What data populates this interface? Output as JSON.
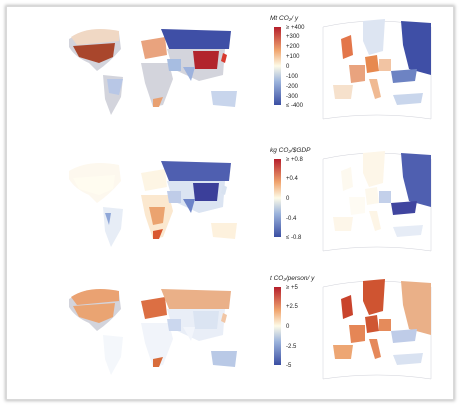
{
  "panels": [
    {
      "legend_title": "Mt CO₂/ y",
      "ticks": [
        "≥ +400",
        "+300",
        "+200",
        "+100",
        "0",
        "-100",
        "-200",
        "-300",
        "≤ -400"
      ],
      "colors": {
        "land": "#d3d4dc",
        "usa": "#a9462c",
        "china": "#b2242d",
        "russia": "#3f4fa6",
        "japan": "#d83a2e",
        "india": "#9db2dd",
        "brazil": "#b8c7e6",
        "europe": "#e9a37e",
        "canada": "#f0d8c4",
        "australia": "#c8d5ec",
        "southafrica": "#e8a071",
        "mideast": "#a7bde1",
        "ukraine": "#6d83c3"
      }
    },
    {
      "legend_title": "kg CO₂/$GDP",
      "ticks": [
        "≥ +0.8",
        "+0.4",
        "0",
        "-0.4",
        "≤ -0.8"
      ],
      "colors": {
        "land": "#d3d4dc",
        "usa": "#fffcf0",
        "china": "#3b3f9a",
        "russia": "#4f5fb0",
        "japan": "#d8e2f0",
        "india": "#6d84c8",
        "brazil": "#e7edf6",
        "europe": "#fdf5e4",
        "canada": "#fdf8ee",
        "australia": "#fdf1dd",
        "southafrica": "#d9582f",
        "mideast": "#bfcce8",
        "ukraine": "#40459f",
        "africa": "#eba36f",
        "kazakh": "#4a55a8"
      }
    },
    {
      "legend_title": "t CO₂/person/ y",
      "ticks": [
        "≥ +5",
        "+2.5",
        "0",
        "-2.5",
        "-5"
      ],
      "colors": {
        "land": "#d3d4dc",
        "usa": "#eaa472",
        "china": "#dbe4f2",
        "russia": "#eab088",
        "japan": "#f1c6a5",
        "india": "#f2f5fb",
        "brazil": "#f4f7fb",
        "europe": "#dc6f43",
        "canada": "#eaa272",
        "australia": "#b9c9e6",
        "southafrica": "#d86c3b",
        "mideast": "#cbd7ee",
        "ukraine": "#bfcce8",
        "scandinavia": "#cf5431"
      }
    }
  ],
  "colorbar": {
    "top": "#b51e2c",
    "upper": "#f0a56f",
    "mid": "#fdfbe8",
    "lower": "#9cb4dc",
    "bottom": "#3a4ea2"
  }
}
